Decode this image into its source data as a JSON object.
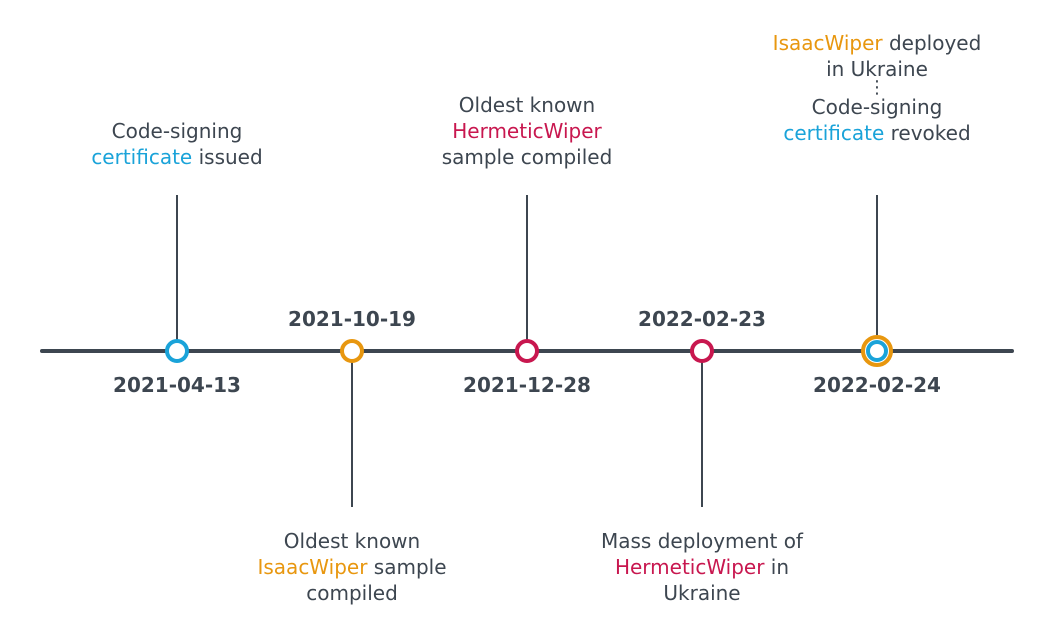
{
  "colors": {
    "axis": "#3d4650",
    "text": "#3d4650",
    "certificate": "#1aa3d9",
    "isaacwiper": "#e8970f",
    "hermeticwiper": "#c8174f"
  },
  "events": [
    {
      "date": "2021-04-13",
      "marker_color": "#1aa3d9",
      "line1_text": "Code-signing",
      "line2_highlight": "certificate",
      "line2_rest": " issued"
    },
    {
      "date": "2021-10-19",
      "marker_color": "#e8970f",
      "line1_text": "Oldest known",
      "line2_highlight": "IsaacWiper",
      "line2_rest": " sample",
      "line3_text": "compiled"
    },
    {
      "date": "2021-12-28",
      "marker_color": "#c8174f",
      "line1_text": "Oldest known",
      "line2_highlight": "HermeticWiper",
      "line3_text": "sample compiled"
    },
    {
      "date": "2022-02-23",
      "marker_color": "#c8174f",
      "line1_text": "Mass deployment of",
      "line2_highlight": "HermeticWiper",
      "line2_rest": " in",
      "line3_text": "Ukraine"
    },
    {
      "date": "2022-02-24",
      "marker_outer_color": "#e8970f",
      "marker_inner_color": "#1aa3d9",
      "line1_highlight": "IsaacWiper",
      "line1_rest": " deployed",
      "line2_text": "in Ukraine",
      "ellipsis": "⋮",
      "line3_text": "Code-signing",
      "line4_highlight": "certificate",
      "line4_rest": " revoked"
    }
  ]
}
